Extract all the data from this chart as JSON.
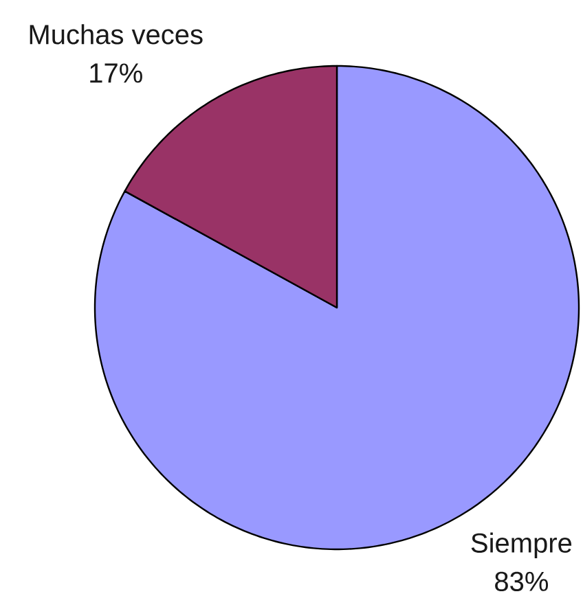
{
  "chart_data": {
    "type": "pie",
    "categories": [
      "Siempre",
      "Muchas veces"
    ],
    "values": [
      83,
      17
    ],
    "colors": [
      "#9999ff",
      "#993366"
    ],
    "value_labels": [
      "83%",
      "17%"
    ]
  }
}
